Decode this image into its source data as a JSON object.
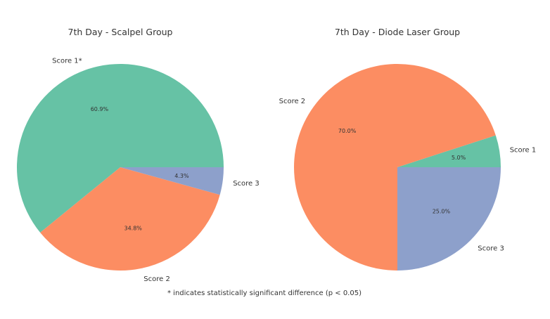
{
  "footnote": "* indicates statistically significant difference (p < 0.05)",
  "chart_data": [
    {
      "type": "pie",
      "title": "7th Day - Scalpel Group",
      "slices": [
        {
          "label": "Score 1*",
          "value": 60.9,
          "value_label": "60.9%",
          "color": "#66c2a5"
        },
        {
          "label": "Score 2",
          "value": 34.8,
          "value_label": "34.8%",
          "color": "#fc8d62"
        },
        {
          "label": "Score 3",
          "value": 4.3,
          "value_label": "4.3%",
          "color": "#8da0cb"
        }
      ]
    },
    {
      "type": "pie",
      "title": "7th Day - Diode Laser Group",
      "slices": [
        {
          "label": "Score 1",
          "value": 5.0,
          "value_label": "5.0%",
          "color": "#66c2a5"
        },
        {
          "label": "Score 2",
          "value": 70.0,
          "value_label": "70.0%",
          "color": "#fc8d62"
        },
        {
          "label": "Score 3",
          "value": 25.0,
          "value_label": "25.0%",
          "color": "#8da0cb"
        }
      ]
    }
  ]
}
